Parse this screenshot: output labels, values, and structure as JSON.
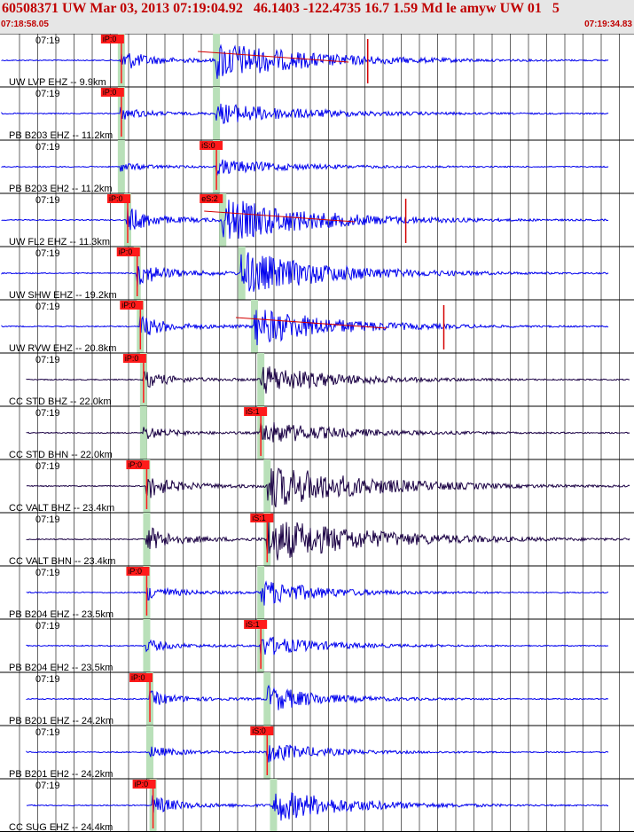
{
  "header": {
    "title": "60508371 UW Mar 03, 2013 07:19:04.92   46.1403 -122.4735 16.7 1.59 Md le amyw UW 01   5",
    "start_time": "07:18:58.05",
    "end_time": "07:19:34.83"
  },
  "colors": {
    "header_bg": "#e6e6e6",
    "header_text": "#c00000",
    "vertical_trace": "#0000ee",
    "broadband_trace": "#1a0044",
    "pick_box": "#ff1a1a",
    "pick_window": "#b9e0b9",
    "overlay_line": "#d40000"
  },
  "time_tick_label": "07:19",
  "channels": [
    {
      "label": "UW LVP EHZ -- 9.9km",
      "pick": "iP:0",
      "color": "blue",
      "p": 0.19,
      "s": 0.34,
      "sig": 0.26,
      "long": 0.7,
      "spike": 0.58,
      "ovl": true
    },
    {
      "label": "PB B203 EHZ -- 11.2km",
      "pick": "iP:0",
      "color": "blue",
      "p": 0.19,
      "s": 0.34,
      "sig": 0.14,
      "long": 0.7,
      "spike": null,
      "ovl": false
    },
    {
      "label": "PB B203 EH2 -- 11.2km",
      "pick": "iS:0",
      "color": "blue",
      "p": 0.19,
      "s": 0.34,
      "sig": 0.1,
      "long": 0.55,
      "spike": null,
      "ovl": false
    },
    {
      "label": "UW FL2 EHZ -- 11.3km",
      "pick": "iP:0",
      "pick2": "eS:2",
      "color": "blue",
      "p": 0.2,
      "s": 0.35,
      "sig": 0.3,
      "long": 0.7,
      "spike": 0.64,
      "ovl": true
    },
    {
      "label": "UW SHW EHZ -- 19.2km",
      "pick": "iP:0",
      "color": "blue",
      "p": 0.215,
      "s": 0.38,
      "sig": 0.3,
      "long": 0.65,
      "spike": null,
      "ovl": false
    },
    {
      "label": "UW RVW EHZ -- 20.8km",
      "pick": "iP:0",
      "color": "blue",
      "p": 0.22,
      "s": 0.4,
      "sig": 0.26,
      "long": 0.6,
      "spike": 0.7,
      "ovl": true
    },
    {
      "label": "CC STD BHZ -- 22.0km",
      "pick": "iP:0",
      "color": "dark",
      "p": 0.225,
      "s": 0.41,
      "sig": 0.2,
      "long": 0.55,
      "spike": null,
      "ovl": false
    },
    {
      "label": "CC STD BHN -- 22.0km",
      "pick": "iS:1",
      "color": "dark",
      "p": 0.225,
      "s": 0.41,
      "sig": 0.16,
      "long": 0.6,
      "spike": null,
      "ovl": false
    },
    {
      "label": "CC VALT BHZ -- 23.4km",
      "pick": "iP:0",
      "color": "dark",
      "p": 0.23,
      "s": 0.42,
      "sig": 0.3,
      "long": 0.75,
      "spike": null,
      "ovl": false
    },
    {
      "label": "CC VALT BHN -- 23.4km",
      "pick": "iS:1",
      "color": "dark",
      "p": 0.23,
      "s": 0.42,
      "sig": 0.3,
      "long": 0.8,
      "spike": null,
      "ovl": false
    },
    {
      "label": "PB B204 EHZ -- 23.5km",
      "pick": "iP:0",
      "color": "blue",
      "p": 0.23,
      "s": 0.41,
      "sig": 0.18,
      "long": 0.45,
      "spike": null,
      "ovl": false
    },
    {
      "label": "PB B204 EH2 -- 23.5km",
      "pick": "iS:1",
      "color": "blue",
      "p": 0.23,
      "s": 0.41,
      "sig": 0.14,
      "long": 0.45,
      "spike": null,
      "ovl": false
    },
    {
      "label": "PB B201 EHZ -- 24.2km",
      "pick": "iP:0",
      "color": "blue",
      "p": 0.235,
      "s": 0.42,
      "sig": 0.18,
      "long": 0.4,
      "spike": null,
      "ovl": false
    },
    {
      "label": "PB B201 EH2 -- 24.2km",
      "pick": "iS:0",
      "color": "blue",
      "p": 0.235,
      "s": 0.42,
      "sig": 0.14,
      "long": 0.4,
      "spike": null,
      "ovl": false
    },
    {
      "label": "CC SUG EHZ -- 24.4km",
      "pick": "iP:0",
      "color": "blue",
      "p": 0.24,
      "s": 0.43,
      "sig": 0.22,
      "long": 0.55,
      "spike": null,
      "ovl": false
    }
  ]
}
